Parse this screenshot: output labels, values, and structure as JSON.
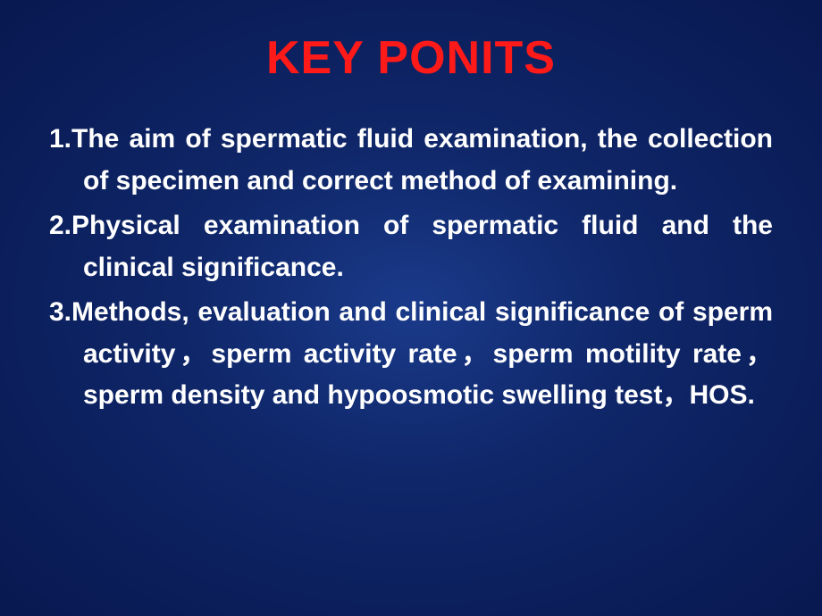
{
  "slide": {
    "title": "KEY PONITS",
    "points": [
      "1.The aim of spermatic fluid examination, the collection of  specimen and correct  method of examining.",
      "2.Physical examination of  spermatic fluid  and the clinical significance.",
      "3.Methods, evaluation and  clinical significance of sperm activity，sperm activity rate，sperm motility rate，sperm density and hypoosmotic swelling test，HOS."
    ],
    "colors": {
      "title": "#ff1a1a",
      "text": "#ffffff",
      "bg_center": "#1a3a8a",
      "bg_outer": "#081850"
    },
    "typography": {
      "title_fontsize": 52,
      "body_fontsize": 30,
      "font_weight": "bold",
      "font_family": "Arial"
    }
  }
}
